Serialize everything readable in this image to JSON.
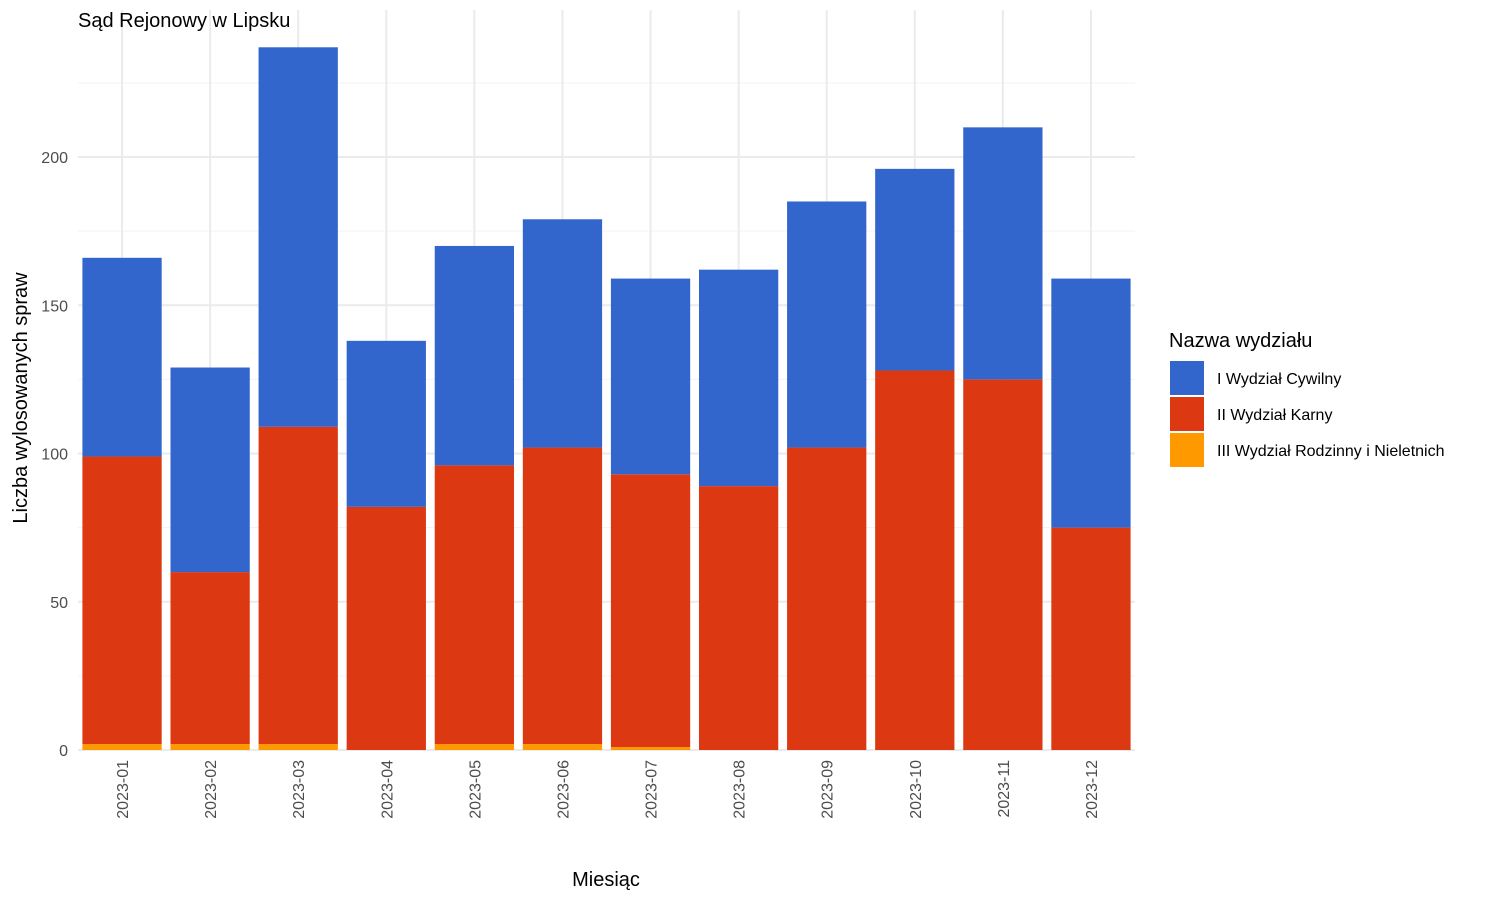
{
  "chart_data": {
    "type": "bar",
    "stacked": true,
    "title": "Sąd Rejonowy w Lipsku",
    "xlabel": "Miesiąc",
    "ylabel": "Liczba wylosowanych spraw",
    "ylim": [
      0,
      240
    ],
    "yticks": [
      0,
      50,
      100,
      150,
      200
    ],
    "grid": true,
    "legend_title": "Nazwa wydziału",
    "legend_position": "right",
    "categories": [
      "2023-01",
      "2023-02",
      "2023-03",
      "2023-04",
      "2023-05",
      "2023-06",
      "2023-07",
      "2023-08",
      "2023-09",
      "2023-10",
      "2023-11",
      "2023-12"
    ],
    "series": [
      {
        "name": "III Wydział Rodzinny i Nieletnich",
        "color": "#FF9900",
        "values": [
          2,
          2,
          2,
          0,
          2,
          2,
          1,
          0,
          0,
          0,
          0,
          0
        ]
      },
      {
        "name": "II Wydział Karny",
        "color": "#DC3912",
        "values": [
          97,
          58,
          107,
          82,
          94,
          100,
          92,
          89,
          102,
          128,
          125,
          75
        ]
      },
      {
        "name": "I Wydział Cywilny",
        "color": "#3366CC",
        "values": [
          67,
          69,
          128,
          56,
          74,
          77,
          66,
          73,
          83,
          68,
          85,
          84
        ]
      }
    ],
    "legend_order": [
      "I Wydział Cywilny",
      "II Wydział Karny",
      "III Wydział Rodzinny i Nieletnich"
    ]
  }
}
